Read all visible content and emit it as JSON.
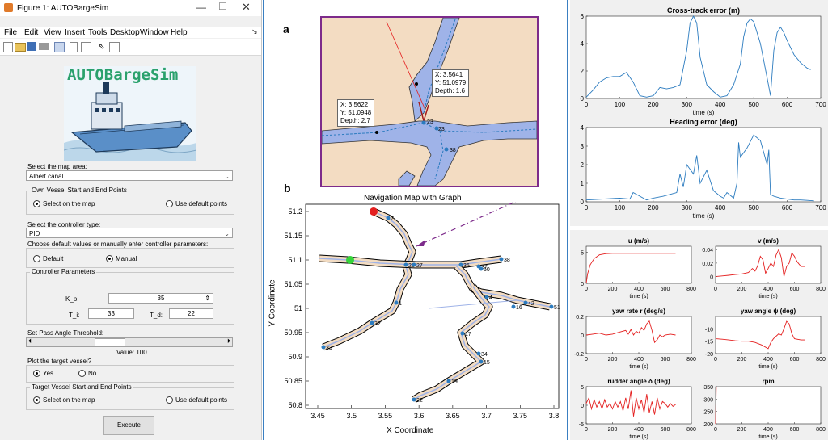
{
  "window": {
    "title": "Figure 1: AUTOBargeSim",
    "menu": [
      "File",
      "Edit",
      "View",
      "Insert",
      "Tools",
      "Desktop",
      "Window",
      "Help"
    ],
    "logo_text": "AUTOBargeSim",
    "arrow_glyph": "↘"
  },
  "gui": {
    "map_area_label": "Select the map area:",
    "map_area_value": "Albert canal",
    "own_vessel_title": "Own Vessel Start and End Points",
    "own_opt_map": "Select on the map",
    "own_opt_default": "Use default points",
    "controller_label": "Select the controller type:",
    "controller_value": "PID",
    "params_choice_label": "Choose default values or manually enter controller parameters:",
    "opt_default": "Default",
    "opt_manual": "Manual",
    "ctrl_params_title": "Controller Parameters",
    "kp_label": "K_p:",
    "kp_value": "35",
    "ti_label": "T_i:",
    "ti_value": "33",
    "td_label": "T_d:",
    "td_value": "22",
    "pass_angle_label": "Set Pass Angle Threshold:",
    "slider_value_text": "Value: 100",
    "slider_level": 0.38,
    "plot_target_label": "Plot the target vessel?",
    "opt_yes": "Yes",
    "opt_no": "No",
    "target_title": "Target Vessel Start and End Points",
    "target_opt_map": "Select on the map",
    "target_opt_default": "Use default points",
    "execute_label": "Execute"
  },
  "panel_a": {
    "letter": "a",
    "tip1": [
      "X: 3.5641",
      "Y: 51.0979",
      "Depth: 1.6"
    ],
    "tip2": [
      "X: 3.5622",
      "Y: 51.0948",
      "Depth: 2.7"
    ],
    "node_labels": [
      "23",
      "23",
      "38"
    ]
  },
  "panel_b": {
    "letter": "b",
    "title": "Navigation Map with Graph",
    "xlabel": "X Coordinate",
    "ylabel": "Y Coordinate",
    "xticks": [
      "3.45",
      "3.5",
      "3.55",
      "3.6",
      "3.65",
      "3.7",
      "3.75",
      "3.8"
    ],
    "yticks": [
      "51.2",
      "51.15",
      "51.1",
      "51.05",
      "51",
      "50.95",
      "50.9",
      "50.85",
      "50.8"
    ],
    "node_labels": [
      "7",
      "28",
      "27",
      "38",
      "35",
      "37",
      "50",
      "1",
      "32",
      "33",
      "42",
      "16",
      "51",
      "4",
      "17",
      "34",
      "15",
      "19",
      "22"
    ]
  },
  "colors": {
    "water": "#9fb3e8",
    "land": "#f3dcc2",
    "line_blue": "#2b7bbf",
    "line_red": "#e41f1f",
    "frame_purple": "#7d2b8b"
  },
  "chart_data": [
    {
      "type": "line",
      "title": "Cross-track error (m)",
      "xlabel": "time (s)",
      "xlim": [
        0,
        700
      ],
      "ylim": [
        0,
        6
      ],
      "xticks": [
        "0",
        "100",
        "200",
        "300",
        "400",
        "500",
        "600",
        "700"
      ],
      "yticks": [
        "0",
        "2",
        "4",
        "6"
      ],
      "x": [
        0,
        20,
        40,
        60,
        80,
        100,
        120,
        140,
        160,
        180,
        200,
        220,
        240,
        260,
        280,
        300,
        310,
        320,
        330,
        340,
        360,
        380,
        400,
        420,
        440,
        460,
        470,
        480,
        490,
        500,
        520,
        540,
        550,
        560,
        570,
        580,
        590,
        600,
        620,
        640,
        660,
        670
      ],
      "y": [
        0.1,
        0.6,
        1.2,
        1.5,
        1.6,
        1.6,
        1.9,
        1.2,
        0.2,
        0.1,
        0.2,
        0.8,
        0.7,
        0.8,
        1.0,
        3.5,
        5.5,
        6.0,
        5.5,
        3.0,
        1.0,
        0.5,
        0.1,
        0.2,
        1.0,
        2.5,
        4.5,
        5.5,
        5.8,
        5.6,
        4.0,
        1.5,
        0.2,
        3.5,
        4.8,
        5.2,
        4.8,
        4.2,
        3.2,
        2.6,
        2.2,
        2.1
      ],
      "color": "#2b7bbf"
    },
    {
      "type": "line",
      "title": "Heading error (deg)",
      "xlabel": "time (s)",
      "xlim": [
        0,
        700
      ],
      "ylim": [
        0,
        4
      ],
      "xticks": [
        "0",
        "100",
        "200",
        "300",
        "400",
        "500",
        "600",
        "700"
      ],
      "yticks": [
        "0",
        "1",
        "2",
        "3",
        "4"
      ],
      "x": [
        0,
        50,
        100,
        130,
        140,
        180,
        200,
        230,
        250,
        270,
        280,
        290,
        300,
        320,
        330,
        340,
        360,
        380,
        400,
        410,
        420,
        440,
        450,
        455,
        460,
        480,
        500,
        520,
        540,
        545,
        550,
        560,
        580,
        600,
        620,
        640,
        660,
        680
      ],
      "y": [
        0.1,
        0.15,
        0.2,
        0.15,
        0.5,
        0.1,
        0.2,
        0.3,
        0.4,
        0.5,
        1.5,
        0.8,
        2.0,
        1.5,
        2.5,
        1.0,
        1.7,
        0.6,
        0.3,
        0.2,
        0.5,
        0.2,
        1.0,
        3.2,
        2.4,
        2.9,
        3.6,
        3.3,
        2.0,
        2.8,
        0.4,
        0.3,
        0.2,
        0.15,
        0.1,
        0.1,
        0.08,
        0.05
      ],
      "color": "#2b7bbf"
    },
    {
      "type": "line",
      "title": "u (m/s)",
      "xlabel": "time (s)",
      "xlim": [
        0,
        800
      ],
      "ylim": [
        0,
        6
      ],
      "xticks": [
        "0",
        "200",
        "400",
        "600",
        "800"
      ],
      "yticks": [
        "0",
        "5"
      ],
      "x": [
        0,
        10,
        30,
        60,
        100,
        150,
        200,
        400,
        600,
        680
      ],
      "y": [
        0,
        1.5,
        3.0,
        4.0,
        4.6,
        4.8,
        4.85,
        4.85,
        4.85,
        4.85
      ],
      "color": "#e41f1f"
    },
    {
      "type": "line",
      "title": "v (m/s)",
      "xlabel": "time (s)",
      "xlim": [
        0,
        800
      ],
      "ylim": [
        -0.01,
        0.045
      ],
      "xticks": [
        "0",
        "200",
        "400",
        "600",
        "800"
      ],
      "yticks": [
        "0",
        "0.02",
        "0.04"
      ],
      "x": [
        0,
        50,
        100,
        150,
        200,
        250,
        280,
        300,
        320,
        340,
        360,
        380,
        400,
        420,
        440,
        460,
        480,
        500,
        520,
        540,
        560,
        580,
        600,
        620,
        650,
        680
      ],
      "y": [
        0,
        0.001,
        0.002,
        0.003,
        0.004,
        0.006,
        0.012,
        0.008,
        0.016,
        0.03,
        0.025,
        0.005,
        0.012,
        0.02,
        0.015,
        0.032,
        0.04,
        0.028,
        0.0,
        0.015,
        0.02,
        0.035,
        0.03,
        0.022,
        0.015,
        0.015
      ],
      "color": "#e41f1f"
    },
    {
      "type": "line",
      "title": "yaw rate r (deg/s)",
      "xlabel": "time (s)",
      "xlim": [
        0,
        800
      ],
      "ylim": [
        -0.2,
        0.2
      ],
      "xticks": [
        "0",
        "200",
        "400",
        "600",
        "800"
      ],
      "yticks": [
        "-0.2",
        "0",
        "0.2"
      ],
      "x": [
        0,
        50,
        100,
        150,
        200,
        250,
        300,
        320,
        340,
        360,
        380,
        400,
        420,
        440,
        460,
        480,
        500,
        520,
        540,
        560,
        580,
        600,
        640,
        680
      ],
      "y": [
        0,
        0.01,
        0.02,
        0.0,
        0.01,
        0.03,
        0.05,
        0.01,
        0.06,
        0.0,
        0.04,
        0.02,
        0.08,
        0.05,
        0.12,
        0.15,
        0.05,
        -0.08,
        -0.05,
        0.0,
        -0.02,
        0.0,
        0.01,
        0.0
      ],
      "color": "#e41f1f"
    },
    {
      "type": "line",
      "title": "yaw angle ψ (deg)",
      "xlabel": "time (s)",
      "xlim": [
        0,
        800
      ],
      "ylim": [
        -20,
        -5
      ],
      "xticks": [
        "0",
        "200",
        "400",
        "600",
        "800"
      ],
      "yticks": [
        "-20",
        "-15",
        "-10"
      ],
      "x": [
        0,
        50,
        100,
        150,
        200,
        250,
        300,
        350,
        400,
        420,
        440,
        460,
        480,
        500,
        520,
        540,
        560,
        580,
        600,
        650,
        680
      ],
      "y": [
        -14,
        -14.2,
        -14.5,
        -14.8,
        -15,
        -15,
        -15.5,
        -16.5,
        -18,
        -15.5,
        -14,
        -13,
        -12,
        -12.5,
        -10,
        -7,
        -8,
        -12,
        -14,
        -14.5,
        -14.5
      ],
      "color": "#e41f1f"
    },
    {
      "type": "line",
      "title": "rudder angle δ (deg)",
      "xlabel": "time (s)",
      "xlim": [
        0,
        800
      ],
      "ylim": [
        -5,
        5
      ],
      "xticks": [
        "0",
        "200",
        "400",
        "600",
        "800"
      ],
      "yticks": [
        "-5",
        "0",
        "5"
      ],
      "x": [
        0,
        20,
        40,
        60,
        80,
        100,
        120,
        140,
        160,
        180,
        200,
        220,
        240,
        260,
        280,
        300,
        320,
        340,
        360,
        380,
        400,
        420,
        440,
        460,
        480,
        500,
        520,
        540,
        560,
        580,
        600,
        620,
        640,
        660,
        680
      ],
      "y": [
        0.5,
        2,
        -1,
        1.5,
        -0.5,
        1,
        -1,
        1.5,
        -0.5,
        0.5,
        -1,
        1,
        -0.5,
        1,
        -1.5,
        2,
        -1,
        4,
        -3,
        2,
        -1,
        1.5,
        -2,
        3,
        -2,
        1,
        -2.5,
        2,
        -1,
        1,
        0.5,
        -0.5,
        0.5,
        -0.3,
        0.2
      ],
      "color": "#e41f1f"
    },
    {
      "type": "line",
      "title": "rpm",
      "xlabel": "time (s)",
      "xlim": [
        0,
        800
      ],
      "ylim": [
        200,
        350
      ],
      "xticks": [
        "0",
        "200",
        "400",
        "600",
        "800"
      ],
      "yticks": [
        "200",
        "250",
        "300",
        "350"
      ],
      "x": [
        0,
        5,
        100,
        300,
        500,
        680
      ],
      "y": [
        200,
        348,
        348,
        348,
        348,
        348
      ],
      "color": "#e41f1f"
    }
  ]
}
